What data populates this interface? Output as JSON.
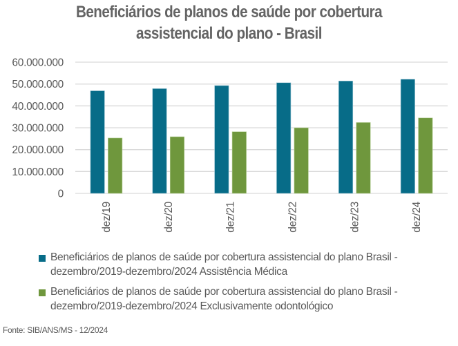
{
  "chart_data": {
    "type": "bar",
    "title": "Beneficiários de planos de saúde por cobertura assistencial do plano - Brasil",
    "title_lines": [
      "Beneficiários de planos de saúde por cobertura",
      "assistencial do plano - Brasil"
    ],
    "xlabel": "",
    "ylabel": "",
    "categories": [
      "dez/19",
      "dez/20",
      "dez/21",
      "dez/22",
      "dez/23",
      "dez/24"
    ],
    "series": [
      {
        "name": "Beneficiários de planos de saúde por cobertura assistencial do plano Brasil - dezembro/2019-dezembro/2024 Assistência Médica",
        "color": "#076C88",
        "values": [
          46900000,
          47900000,
          49300000,
          50600000,
          51400000,
          52200000
        ]
      },
      {
        "name": "Beneficiários de planos de saúde por cobertura assistencial do plano Brasil - dezembro/2019-dezembro/2024 Exclusivamente odontológico",
        "color": "#6F973D",
        "values": [
          25300000,
          25900000,
          28200000,
          30000000,
          32400000,
          34500000
        ]
      }
    ],
    "ylim": [
      0,
      60000000
    ],
    "yticks": [
      0,
      10000000,
      20000000,
      30000000,
      40000000,
      50000000,
      60000000
    ],
    "ytick_labels": [
      "0",
      "10.000.000",
      "20.000.000",
      "30.000.000",
      "40.000.000",
      "50.000.000",
      "60.000.000"
    ],
    "grid": true,
    "legend_position": "bottom",
    "legend_lines": [
      [
        "Beneficiários de planos de saúde por cobertura assistencial do plano Brasil -",
        "dezembro/2019-dezembro/2024 Assistência Médica"
      ],
      [
        "Beneficiários de planos de saúde por cobertura assistencial do plano Brasil -",
        "dezembro/2019-dezembro/2024 Exclusivamente odontológico"
      ]
    ],
    "source": "Fonte: SIB/ANS/MS - 12/2024"
  }
}
